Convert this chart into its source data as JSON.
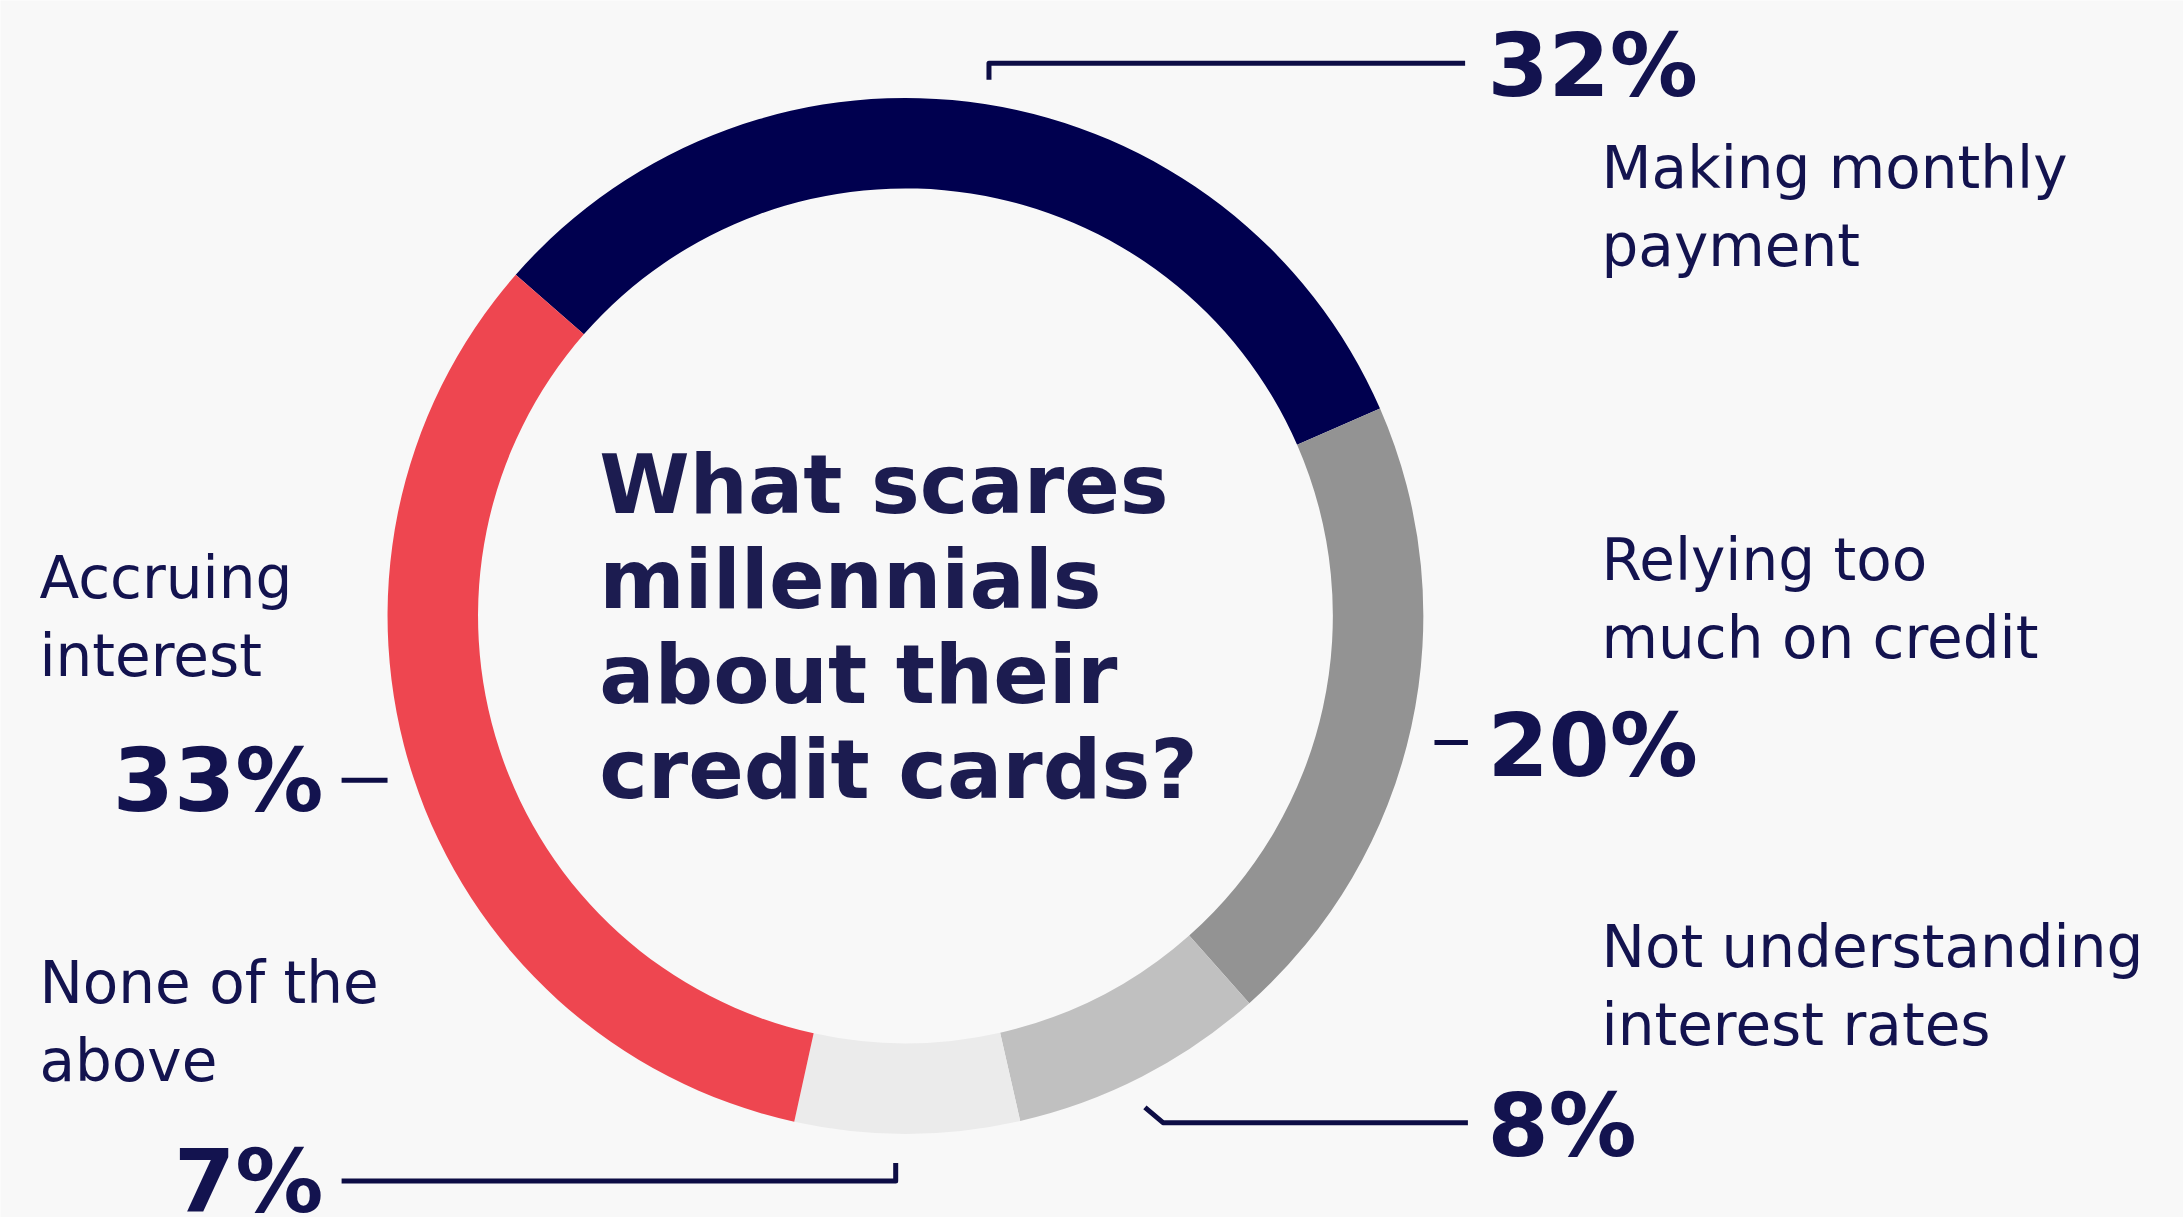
{
  "chart_data": {
    "type": "donut",
    "title": "What scares millennials about their credit cards?",
    "categories": [
      "Making monthly payment",
      "Relying too much on credit",
      "Not understanding interest rates",
      "None of the above",
      "Accruing interest"
    ],
    "values": [
      32,
      20,
      8,
      7,
      33
    ],
    "colors": [
      "#00004f",
      "#939393",
      "#c0c0c0",
      "#ebebeb",
      "#ee4650"
    ],
    "value_labels": [
      "32%",
      "20%",
      "8%",
      "7%",
      "33%"
    ]
  }
}
